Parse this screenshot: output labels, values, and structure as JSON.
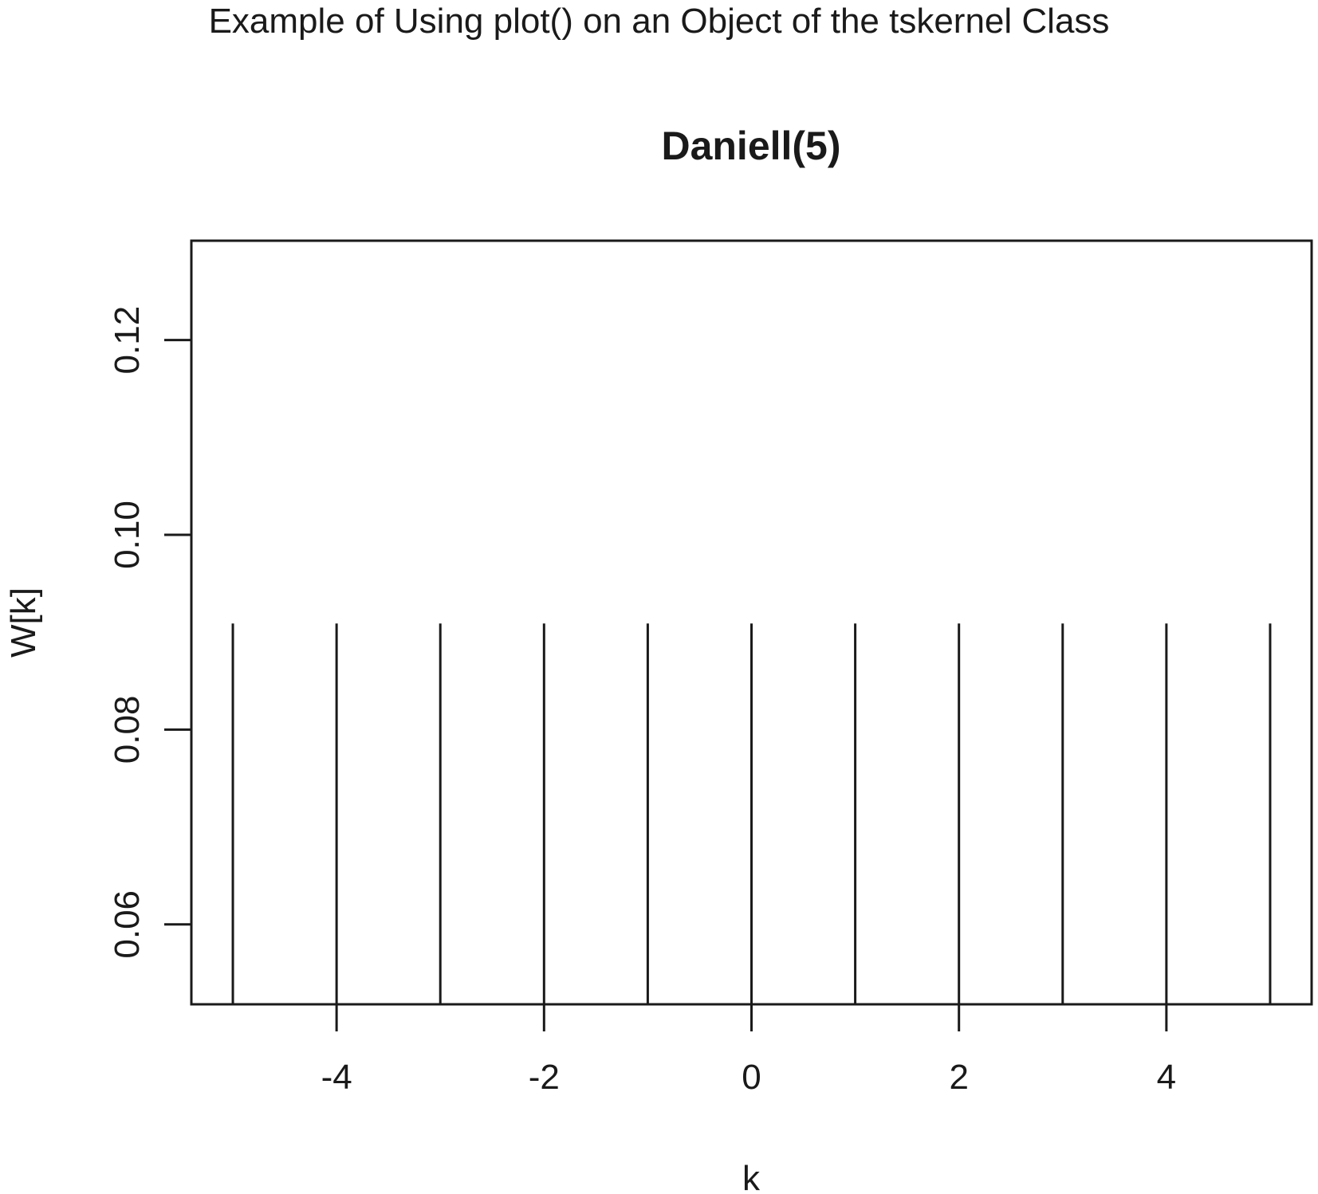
{
  "caption": "Example of Using plot() on an Object of the tskernel Class",
  "chart_data": {
    "type": "bar",
    "style": "vertical lines (type=\"h\")",
    "title": "Daniell(5)",
    "xlabel": "k",
    "ylabel": "W[k]",
    "x": [
      -5,
      -4,
      -3,
      -2,
      -1,
      0,
      1,
      2,
      3,
      4,
      5
    ],
    "values": [
      0.0909,
      0.0909,
      0.0909,
      0.0909,
      0.0909,
      0.0909,
      0.0909,
      0.0909,
      0.0909,
      0.0909,
      0.0909
    ],
    "xlim": [
      -5.4,
      5.4
    ],
    "ylim": [
      0.0518,
      0.1302
    ],
    "xticks": [
      -4,
      -2,
      0,
      2,
      4
    ],
    "xtick_labels": [
      "-4",
      "-2",
      "0",
      "2",
      "4"
    ],
    "yticks": [
      0.06,
      0.08,
      0.1,
      0.12
    ],
    "ytick_labels": [
      "0.06",
      "0.08",
      "0.10",
      "0.12"
    ],
    "grid": false,
    "legend": "none",
    "line_color": "#1a1a1a"
  }
}
